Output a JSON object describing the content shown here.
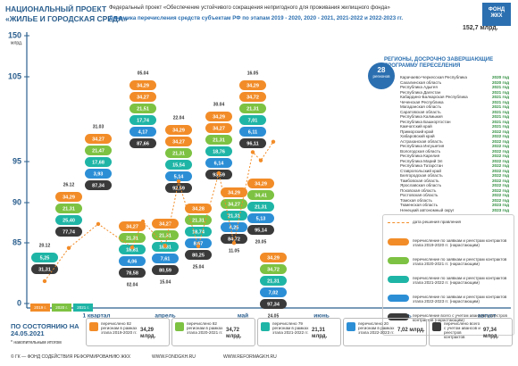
{
  "header": {
    "project": "НАЦИОНАЛЬНЫЙ ПРОЕКТ",
    "project_name": "«ЖИЛЬЕ И ГОРОДСКАЯ СРЕДА»",
    "federal_project": "Федеральный проект «Обеспечение устойчивого сокращения непригодного для проживания жилищного фонда»",
    "subtitle": "Динамика перечисления средств субъектам РФ по этапам 2019 - 2020, 2020 - 2021, 2021-2022 и 2022-2023 гг.",
    "total": "152,7 млрд.",
    "logo": "ФОНД ЖКХ"
  },
  "chart_data": {
    "type": "stacked-labels",
    "y_label": "млрд.",
    "ylim": [
      0,
      150
    ],
    "yticks": [
      0,
      85,
      90,
      95,
      105,
      150
    ],
    "line_color": "#f28c28",
    "years": [
      "2019 г.",
      "2020 г.",
      "2021 г."
    ],
    "months": [
      "1 квартал",
      "апрель",
      "май",
      "июнь",
      "июль",
      "август"
    ],
    "columns": [
      {
        "date": "20.12",
        "values": [
          5.25,
          31.31
        ],
        "value_labels": [
          "5,25",
          "31,31"
        ],
        "colors": [
          "#1fb5a6",
          "#3a3a3a"
        ]
      },
      {
        "date": "26.12",
        "values": [
          34.29,
          21.31,
          25.4,
          77.74
        ],
        "value_labels": [
          "34,29",
          "21,31",
          "25,40",
          "77,74"
        ],
        "colors": [
          "#f28c28",
          "#7dc242",
          "#1fb5a6",
          "#3a3a3a"
        ]
      },
      {
        "date": "31.03",
        "values": [
          34.27,
          21.47,
          17.68,
          3.93,
          87.34
        ],
        "value_labels": [
          "34,27",
          "21,47",
          "17,68",
          "3,93",
          "87,34"
        ],
        "colors": [
          "#f28c28",
          "#7dc242",
          "#1fb5a6",
          "#2c8fd6",
          "#3a3a3a"
        ]
      },
      {
        "date": "02.04",
        "values": [
          34.27,
          21.31,
          18.81,
          4.06,
          78.58
        ],
        "value_labels": [
          "34,27",
          "21,31",
          "18,81",
          "4,06",
          "78,58"
        ],
        "colors": [
          "#f28c28",
          "#7dc242",
          "#1fb5a6",
          "#2c8fd6",
          "#3a3a3a"
        ]
      },
      {
        "date": "05.04",
        "values": [
          34.29,
          34.27,
          21.51,
          17.74,
          4.17,
          87.66
        ],
        "value_labels": [
          "34,29",
          "34,27",
          "21,51",
          "17,74",
          "4,17",
          "87,66"
        ],
        "colors": [
          "#f28c28",
          "#f28c28",
          "#7dc242",
          "#1fb5a6",
          "#2c8fd6",
          "#3a3a3a"
        ]
      },
      {
        "date": "15.04",
        "values": [
          34.27,
          21.31,
          18.81,
          7.61,
          80.59
        ],
        "value_labels": [
          "34,27",
          "21,31",
          "18,81",
          "7,61",
          "80,59"
        ],
        "colors": [
          "#f28c28",
          "#7dc242",
          "#1fb5a6",
          "#2c8fd6",
          "#3a3a3a"
        ]
      },
      {
        "date": "22.04",
        "values": [
          34.29,
          34.27,
          21.31,
          15.54,
          5.14,
          92.59
        ],
        "value_labels": [
          "34,29",
          "34,27",
          "21,31",
          "15,54",
          "5,14",
          "92,59"
        ],
        "colors": [
          "#f28c28",
          "#f28c28",
          "#7dc242",
          "#1fb5a6",
          "#2c8fd6",
          "#3a3a3a"
        ]
      },
      {
        "date": "25.04",
        "values": [
          34.28,
          21.31,
          18.74,
          8.67,
          80.25
        ],
        "value_labels": [
          "34,28",
          "21,31",
          "18,74",
          "8,67",
          "80,25"
        ],
        "colors": [
          "#f28c28",
          "#7dc242",
          "#1fb5a6",
          "#2c8fd6",
          "#3a3a3a"
        ]
      },
      {
        "date": "30.04",
        "values": [
          34.29,
          34.27,
          21.31,
          18.76,
          6.14,
          93.59
        ],
        "value_labels": [
          "34,29",
          "34,27",
          "21,31",
          "18,76",
          "6,14",
          "93,59"
        ],
        "colors": [
          "#f28c28",
          "#f28c28",
          "#7dc242",
          "#1fb5a6",
          "#2c8fd6",
          "#3a3a3a"
        ]
      },
      {
        "date": "11.05",
        "values": [
          34.29,
          34.27,
          21.31,
          4.25,
          84.72
        ],
        "value_labels": [
          "34,29",
          "34,27",
          "21,31",
          "4,25",
          "84,72"
        ],
        "colors": [
          "#f28c28",
          "#7dc242",
          "#1fb5a6",
          "#2c8fd6",
          "#3a3a3a"
        ]
      },
      {
        "date": "16.05",
        "values": [
          34.29,
          34.72,
          21.31,
          7.01,
          6.11,
          96.11
        ],
        "value_labels": [
          "34,29",
          "34,72",
          "21,31",
          "7,01",
          "6,11",
          "96,11"
        ],
        "colors": [
          "#f28c28",
          "#f28c28",
          "#7dc242",
          "#1fb5a6",
          "#2c8fd6",
          "#3a3a3a"
        ]
      },
      {
        "date": "20.05",
        "values": [
          34.29,
          34.41,
          21.31,
          5.13,
          95.14
        ],
        "value_labels": [
          "34,29",
          "34,41",
          "21,31",
          "5,13",
          "95,14"
        ],
        "colors": [
          "#f28c28",
          "#7dc242",
          "#1fb5a6",
          "#2c8fd6",
          "#3a3a3a"
        ]
      },
      {
        "date": "24.05",
        "values": [
          34.29,
          34.72,
          21.31,
          7.02,
          97.34
        ],
        "value_labels": [
          "34,29",
          "34,72",
          "21,31",
          "7,02",
          "97,34"
        ],
        "colors": [
          "#f28c28",
          "#7dc242",
          "#1fb5a6",
          "#2c8fd6",
          "#3a3a3a"
        ]
      }
    ]
  },
  "regions": {
    "count": "28",
    "count_label": "регионов",
    "title": "РЕГИОНЫ, ДОСРОЧНО ЗАВЕРШАЮЩИЕ ПРОГРАММУ ПЕРЕСЕЛЕНИЯ",
    "items": [
      [
        "Карачаево-Черкесская Республика",
        "2020 год"
      ],
      [
        "Сахалинская область",
        "2020 год"
      ],
      [
        "Республика Адыгея",
        "2021 год"
      ],
      [
        "Республика Дагестан",
        "2021 год"
      ],
      [
        "Кабардино-Балкарская Республика",
        "2021 год"
      ],
      [
        "Чеченская Республика",
        "2021 год"
      ],
      [
        "Магаданская область",
        "2021 год"
      ],
      [
        "Саратовская область",
        "2021 год"
      ],
      [
        "Республика Калмыкия",
        "2021 год"
      ],
      [
        "Республика Башкортостан",
        "2021 год"
      ],
      [
        "Камчатский край",
        "2021 год"
      ],
      [
        "Приморский край",
        "2022 год"
      ],
      [
        "Хабаровский край",
        "2022 год"
      ],
      [
        "Астраханская область",
        "2022 год"
      ],
      [
        "Республика Ингушетия",
        "2022 год"
      ],
      [
        "Вологодская область",
        "2022 год"
      ],
      [
        "Республика Карелия",
        "2022 год"
      ],
      [
        "Республика Марий Эл",
        "2022 год"
      ],
      [
        "Республика Татарстан",
        "2022 год"
      ],
      [
        "Ставропольский край",
        "2022 год"
      ],
      [
        "Белгородская область",
        "2022 год"
      ],
      [
        "Тамбовская область",
        "2022 год"
      ],
      [
        "Ярославская область",
        "2022 год"
      ],
      [
        "Псковская область",
        "2022 год"
      ],
      [
        "Ростовская область",
        "2022 год"
      ],
      [
        "Томская область",
        "2022 год"
      ],
      [
        "Тюменская область",
        "2023 год"
      ],
      [
        "Ненецкий автономный округ",
        "2023 год"
      ]
    ]
  },
  "legend": [
    {
      "text": "дата решения правления",
      "color": "#f28c28",
      "marker": "line"
    },
    {
      "text": "перечисление по заявкам и реестрам контрактов этапа 2019-2020 гг. (нарастающим)",
      "color": "#f28c28",
      "marker": "pill"
    },
    {
      "text": "перечисление по заявкам и реестрам контрактов этапа 2020-2021 гг. (нарастающим)",
      "color": "#7dc242",
      "marker": "pill"
    },
    {
      "text": "перечисление по заявкам и реестрам контрактов этапа 2021-2022 гг. (нарастающим)",
      "color": "#1fb5a6",
      "marker": "pill"
    },
    {
      "text": "перечисление по заявкам и реестрам контрактов этапа 2022-2023 гг. (нарастающим)",
      "color": "#2c8fd6",
      "marker": "pill"
    },
    {
      "text": "перечисление всего с учетом авансов и реестров контрактов (нарастающим)",
      "color": "#3a3a3a",
      "marker": "pill"
    }
  ],
  "summary": [
    {
      "text": "перечислено 82 регионам в рамках этапа 2019-2020 гг.",
      "amount": "34,29 млрд.",
      "color": "#f28c28"
    },
    {
      "text": "перечислено 82 регионам в рамках этапа 2020-2021 гг.",
      "amount": "34,72 млрд.",
      "color": "#7dc242"
    },
    {
      "text": "перечислено 79 регионам в рамках этапа 2021-2022 гг.",
      "amount": "21,31 млрд.",
      "color": "#1fb5a6"
    },
    {
      "text": "перечислено 20 регионам в рамках этапа 2022-2023 гг.",
      "amount": "7,02 млрд.",
      "color": "#2c8fd6"
    },
    {
      "text": "перечислено всего с учетом авансов и реестров контрактов",
      "amount": "97,34 млрд.",
      "color": "#3a3a3a"
    }
  ],
  "status": {
    "label": "ПО СОСТОЯНИЮ НА 24.05.2021",
    "note": "* накопительным итогом"
  },
  "footer": [
    "© ГК — ФОНД СОДЕЙСТВИЯ РЕФОРМИРОВАНИЮ ЖКХ",
    "WWW.FONDGKH.RU",
    "WWW.REFORMAGKH.RU"
  ]
}
